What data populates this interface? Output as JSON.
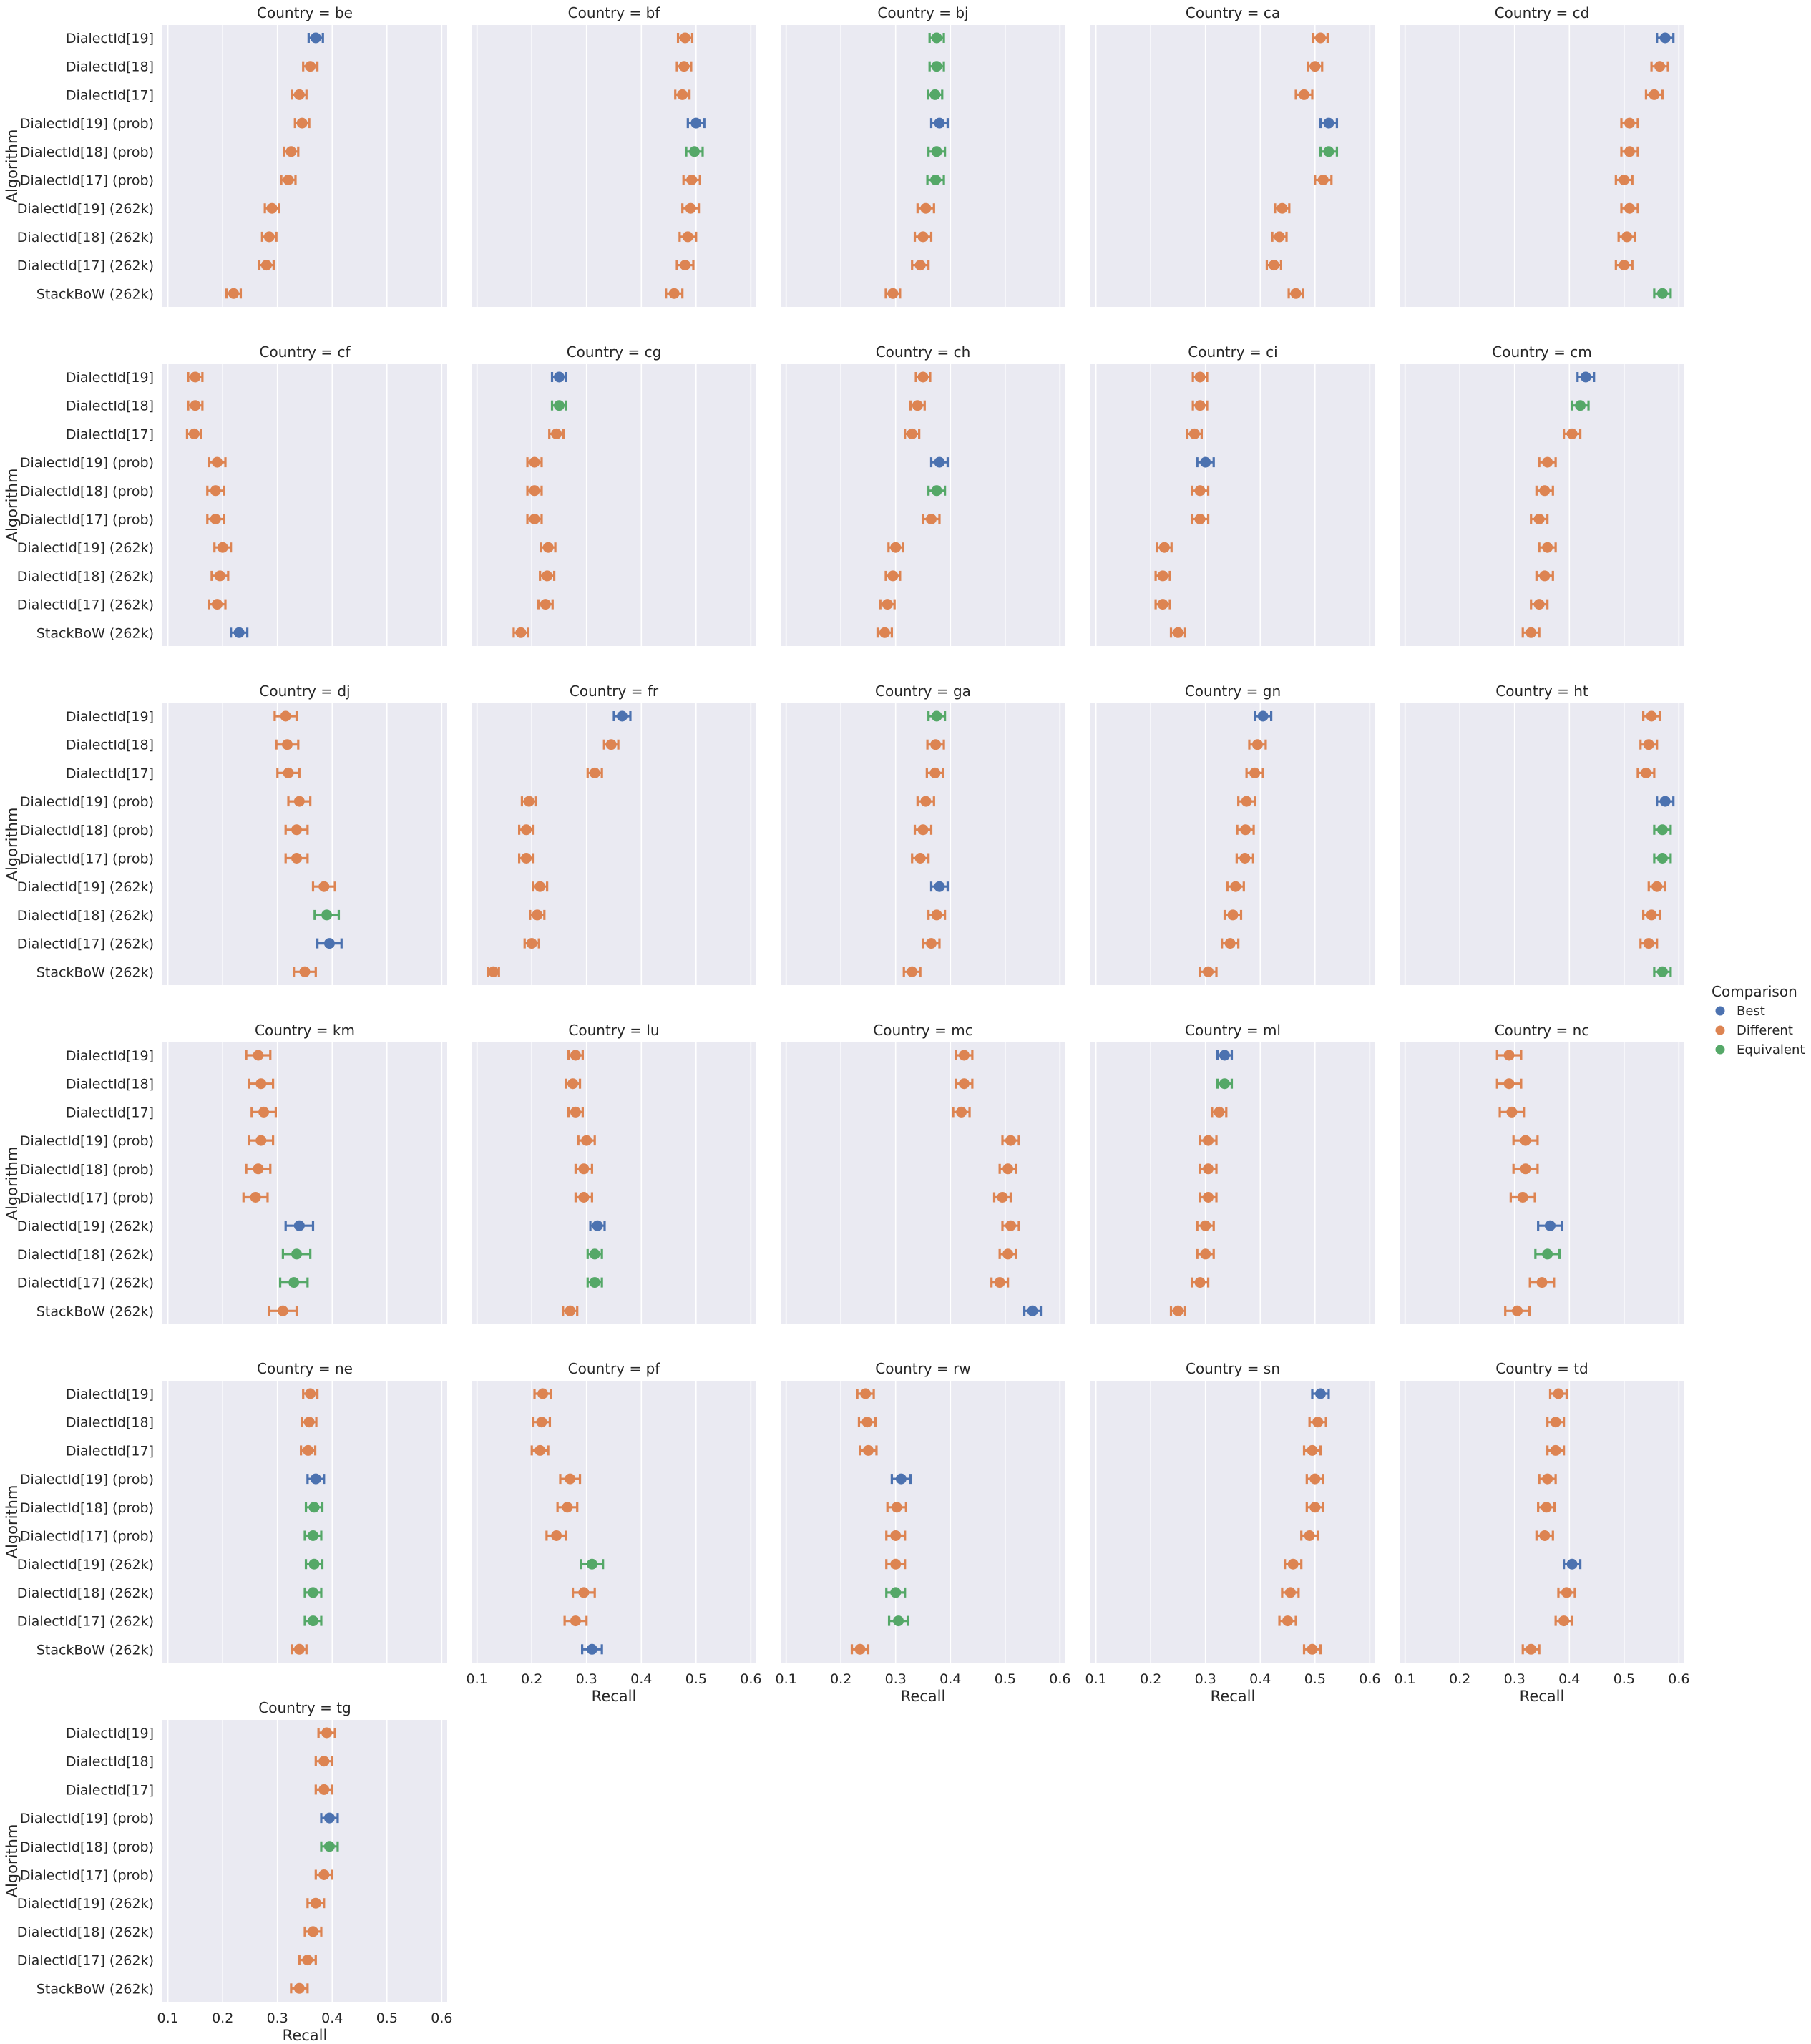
{
  "chart_data": {
    "type": "pointplot",
    "ylabel": "Algorithm",
    "xlabel": "Recall",
    "xlim": [
      0.09,
      0.61
    ],
    "xticks": [
      "0.1",
      "0.2",
      "0.3",
      "0.4",
      "0.5",
      "0.6"
    ],
    "grid": true,
    "legend": {
      "title": "Comparison",
      "placement": "right",
      "entries": [
        {
          "name": "Best",
          "color": "#4c72b0"
        },
        {
          "name": "Different",
          "color": "#dd8452"
        },
        {
          "name": "Equivalent",
          "color": "#55a868"
        }
      ]
    },
    "categories": [
      "DialectId[19]",
      "DialectId[18]",
      "DialectId[17]",
      "DialectId[19] (prob)",
      "DialectId[18] (prob)",
      "DialectId[17] (prob)",
      "DialectId[19] (262k)",
      "DialectId[18] (262k)",
      "DialectId[17] (262k)",
      "StackBoW (262k)"
    ],
    "panels": [
      {
        "title": "Country = be",
        "values": [
          0.37,
          0.36,
          0.34,
          0.345,
          0.325,
          0.32,
          0.29,
          0.285,
          0.28,
          0.22
        ],
        "err": [
          0.013,
          0.013,
          0.013,
          0.013,
          0.013,
          0.013,
          0.013,
          0.013,
          0.013,
          0.013
        ],
        "status": [
          "Best",
          "Different",
          "Different",
          "Different",
          "Different",
          "Different",
          "Different",
          "Different",
          "Different",
          "Different"
        ]
      },
      {
        "title": "Country = bf",
        "values": [
          0.48,
          0.478,
          0.475,
          0.5,
          0.497,
          0.492,
          0.49,
          0.485,
          0.48,
          0.46
        ],
        "err": [
          0.013,
          0.013,
          0.013,
          0.015,
          0.015,
          0.015,
          0.015,
          0.015,
          0.015,
          0.015
        ],
        "status": [
          "Different",
          "Different",
          "Different",
          "Best",
          "Equivalent",
          "Different",
          "Different",
          "Different",
          "Different",
          "Different"
        ]
      },
      {
        "title": "Country = bj",
        "values": [
          0.375,
          0.375,
          0.372,
          0.38,
          0.375,
          0.373,
          0.355,
          0.35,
          0.345,
          0.295
        ],
        "err": [
          0.013,
          0.013,
          0.013,
          0.015,
          0.015,
          0.015,
          0.015,
          0.015,
          0.015,
          0.013
        ],
        "status": [
          "Equivalent",
          "Equivalent",
          "Equivalent",
          "Best",
          "Equivalent",
          "Equivalent",
          "Different",
          "Different",
          "Different",
          "Different"
        ]
      },
      {
        "title": "Country = ca",
        "values": [
          0.51,
          0.5,
          0.48,
          0.525,
          0.525,
          0.515,
          0.44,
          0.435,
          0.425,
          0.465
        ],
        "err": [
          0.013,
          0.013,
          0.015,
          0.015,
          0.015,
          0.015,
          0.013,
          0.013,
          0.013,
          0.013
        ],
        "status": [
          "Different",
          "Different",
          "Different",
          "Best",
          "Equivalent",
          "Different",
          "Different",
          "Different",
          "Different",
          "Different"
        ]
      },
      {
        "title": "Country = cd",
        "values": [
          0.575,
          0.565,
          0.555,
          0.51,
          0.51,
          0.5,
          0.51,
          0.505,
          0.5,
          0.57
        ],
        "err": [
          0.015,
          0.015,
          0.015,
          0.015,
          0.015,
          0.015,
          0.015,
          0.015,
          0.015,
          0.015
        ],
        "status": [
          "Best",
          "Different",
          "Different",
          "Different",
          "Different",
          "Different",
          "Different",
          "Different",
          "Different",
          "Equivalent"
        ]
      },
      {
        "title": "Country = cf",
        "values": [
          0.15,
          0.15,
          0.148,
          0.19,
          0.187,
          0.187,
          0.2,
          0.195,
          0.19,
          0.23
        ],
        "err": [
          0.013,
          0.013,
          0.013,
          0.015,
          0.015,
          0.015,
          0.015,
          0.015,
          0.015,
          0.015
        ],
        "status": [
          "Different",
          "Different",
          "Different",
          "Different",
          "Different",
          "Different",
          "Different",
          "Different",
          "Different",
          "Best"
        ]
      },
      {
        "title": "Country = cg",
        "values": [
          0.25,
          0.25,
          0.245,
          0.205,
          0.205,
          0.205,
          0.23,
          0.228,
          0.225,
          0.18
        ],
        "err": [
          0.013,
          0.013,
          0.013,
          0.013,
          0.013,
          0.013,
          0.013,
          0.013,
          0.013,
          0.013
        ],
        "status": [
          "Best",
          "Equivalent",
          "Different",
          "Different",
          "Different",
          "Different",
          "Different",
          "Different",
          "Different",
          "Different"
        ]
      },
      {
        "title": "Country = ch",
        "values": [
          0.35,
          0.34,
          0.33,
          0.38,
          0.375,
          0.365,
          0.3,
          0.295,
          0.285,
          0.28
        ],
        "err": [
          0.013,
          0.013,
          0.013,
          0.015,
          0.015,
          0.015,
          0.013,
          0.013,
          0.013,
          0.013
        ],
        "status": [
          "Different",
          "Different",
          "Different",
          "Best",
          "Equivalent",
          "Different",
          "Different",
          "Different",
          "Different",
          "Different"
        ]
      },
      {
        "title": "Country = ci",
        "values": [
          0.29,
          0.29,
          0.28,
          0.3,
          0.29,
          0.29,
          0.225,
          0.222,
          0.222,
          0.25
        ],
        "err": [
          0.013,
          0.013,
          0.013,
          0.015,
          0.015,
          0.015,
          0.013,
          0.013,
          0.013,
          0.013
        ],
        "status": [
          "Different",
          "Different",
          "Different",
          "Best",
          "Different",
          "Different",
          "Different",
          "Different",
          "Different",
          "Different"
        ]
      },
      {
        "title": "Country = cm",
        "values": [
          0.43,
          0.42,
          0.405,
          0.36,
          0.355,
          0.345,
          0.36,
          0.355,
          0.345,
          0.33
        ],
        "err": [
          0.015,
          0.015,
          0.015,
          0.015,
          0.015,
          0.015,
          0.015,
          0.015,
          0.015,
          0.015
        ],
        "status": [
          "Best",
          "Equivalent",
          "Different",
          "Different",
          "Different",
          "Different",
          "Different",
          "Different",
          "Different",
          "Different"
        ]
      },
      {
        "title": "Country = dj",
        "values": [
          0.315,
          0.318,
          0.32,
          0.34,
          0.335,
          0.335,
          0.385,
          0.39,
          0.395,
          0.35
        ],
        "err": [
          0.02,
          0.02,
          0.02,
          0.02,
          0.02,
          0.02,
          0.02,
          0.022,
          0.022,
          0.02
        ],
        "status": [
          "Different",
          "Different",
          "Different",
          "Different",
          "Different",
          "Different",
          "Different",
          "Equivalent",
          "Best",
          "Different"
        ]
      },
      {
        "title": "Country = fr",
        "values": [
          0.365,
          0.345,
          0.315,
          0.195,
          0.19,
          0.19,
          0.215,
          0.21,
          0.2,
          0.13
        ],
        "err": [
          0.015,
          0.013,
          0.013,
          0.013,
          0.013,
          0.013,
          0.013,
          0.013,
          0.013,
          0.01
        ],
        "status": [
          "Best",
          "Different",
          "Different",
          "Different",
          "Different",
          "Different",
          "Different",
          "Different",
          "Different",
          "Different"
        ]
      },
      {
        "title": "Country = ga",
        "values": [
          0.375,
          0.373,
          0.372,
          0.355,
          0.35,
          0.345,
          0.38,
          0.375,
          0.365,
          0.33
        ],
        "err": [
          0.015,
          0.015,
          0.015,
          0.015,
          0.015,
          0.015,
          0.015,
          0.015,
          0.015,
          0.015
        ],
        "status": [
          "Equivalent",
          "Different",
          "Different",
          "Different",
          "Different",
          "Different",
          "Best",
          "Different",
          "Different",
          "Different"
        ]
      },
      {
        "title": "Country = gn",
        "values": [
          0.405,
          0.395,
          0.39,
          0.375,
          0.373,
          0.372,
          0.355,
          0.35,
          0.345,
          0.305
        ],
        "err": [
          0.015,
          0.015,
          0.015,
          0.015,
          0.015,
          0.015,
          0.015,
          0.015,
          0.015,
          0.015
        ],
        "status": [
          "Best",
          "Different",
          "Different",
          "Different",
          "Different",
          "Different",
          "Different",
          "Different",
          "Different",
          "Different"
        ]
      },
      {
        "title": "Country = ht",
        "values": [
          0.55,
          0.545,
          0.54,
          0.575,
          0.57,
          0.57,
          0.56,
          0.55,
          0.545,
          0.57
        ],
        "err": [
          0.015,
          0.015,
          0.015,
          0.015,
          0.015,
          0.015,
          0.015,
          0.015,
          0.015,
          0.015
        ],
        "status": [
          "Different",
          "Different",
          "Different",
          "Best",
          "Equivalent",
          "Equivalent",
          "Different",
          "Different",
          "Different",
          "Equivalent"
        ]
      },
      {
        "title": "Country = km",
        "values": [
          0.265,
          0.27,
          0.275,
          0.27,
          0.265,
          0.26,
          0.34,
          0.335,
          0.33,
          0.31
        ],
        "err": [
          0.022,
          0.022,
          0.022,
          0.022,
          0.022,
          0.022,
          0.025,
          0.025,
          0.025,
          0.025
        ],
        "status": [
          "Different",
          "Different",
          "Different",
          "Different",
          "Different",
          "Different",
          "Best",
          "Equivalent",
          "Equivalent",
          "Different"
        ]
      },
      {
        "title": "Country = lu",
        "values": [
          0.28,
          0.275,
          0.28,
          0.3,
          0.295,
          0.295,
          0.32,
          0.315,
          0.315,
          0.27
        ],
        "err": [
          0.013,
          0.013,
          0.013,
          0.015,
          0.015,
          0.015,
          0.013,
          0.013,
          0.013,
          0.013
        ],
        "status": [
          "Different",
          "Different",
          "Different",
          "Different",
          "Different",
          "Different",
          "Best",
          "Equivalent",
          "Equivalent",
          "Different"
        ]
      },
      {
        "title": "Country = mc",
        "values": [
          0.425,
          0.425,
          0.42,
          0.51,
          0.505,
          0.495,
          0.51,
          0.505,
          0.49,
          0.55
        ],
        "err": [
          0.015,
          0.015,
          0.015,
          0.015,
          0.015,
          0.015,
          0.015,
          0.015,
          0.015,
          0.015
        ],
        "status": [
          "Different",
          "Different",
          "Different",
          "Different",
          "Different",
          "Different",
          "Different",
          "Different",
          "Different",
          "Best"
        ]
      },
      {
        "title": "Country = ml",
        "values": [
          0.335,
          0.335,
          0.325,
          0.305,
          0.305,
          0.305,
          0.3,
          0.3,
          0.29,
          0.25
        ],
        "err": [
          0.013,
          0.013,
          0.013,
          0.015,
          0.015,
          0.015,
          0.015,
          0.015,
          0.015,
          0.013
        ],
        "status": [
          "Best",
          "Equivalent",
          "Different",
          "Different",
          "Different",
          "Different",
          "Different",
          "Different",
          "Different",
          "Different"
        ]
      },
      {
        "title": "Country = nc",
        "values": [
          0.29,
          0.29,
          0.295,
          0.32,
          0.32,
          0.315,
          0.365,
          0.36,
          0.35,
          0.305
        ],
        "err": [
          0.022,
          0.022,
          0.022,
          0.022,
          0.022,
          0.022,
          0.022,
          0.022,
          0.022,
          0.022
        ],
        "status": [
          "Different",
          "Different",
          "Different",
          "Different",
          "Different",
          "Different",
          "Best",
          "Equivalent",
          "Different",
          "Different"
        ]
      },
      {
        "title": "Country = ne",
        "values": [
          0.36,
          0.358,
          0.356,
          0.37,
          0.367,
          0.365,
          0.367,
          0.365,
          0.365,
          0.34
        ],
        "err": [
          0.013,
          0.013,
          0.013,
          0.015,
          0.015,
          0.015,
          0.015,
          0.015,
          0.015,
          0.013
        ],
        "status": [
          "Different",
          "Different",
          "Different",
          "Best",
          "Equivalent",
          "Equivalent",
          "Equivalent",
          "Equivalent",
          "Equivalent",
          "Different"
        ]
      },
      {
        "title": "Country = pf",
        "values": [
          0.22,
          0.218,
          0.215,
          0.27,
          0.265,
          0.245,
          0.31,
          0.295,
          0.28,
          0.31
        ],
        "err": [
          0.015,
          0.015,
          0.015,
          0.018,
          0.018,
          0.018,
          0.02,
          0.02,
          0.02,
          0.018
        ],
        "status": [
          "Different",
          "Different",
          "Different",
          "Different",
          "Different",
          "Different",
          "Equivalent",
          "Different",
          "Different",
          "Best"
        ]
      },
      {
        "title": "Country = rw",
        "values": [
          0.245,
          0.248,
          0.25,
          0.31,
          0.302,
          0.3,
          0.3,
          0.3,
          0.305,
          0.235
        ],
        "err": [
          0.015,
          0.015,
          0.015,
          0.017,
          0.017,
          0.017,
          0.017,
          0.017,
          0.017,
          0.015
        ],
        "status": [
          "Different",
          "Different",
          "Different",
          "Best",
          "Different",
          "Different",
          "Different",
          "Equivalent",
          "Equivalent",
          "Different"
        ]
      },
      {
        "title": "Country = sn",
        "values": [
          0.51,
          0.505,
          0.495,
          0.5,
          0.5,
          0.49,
          0.46,
          0.455,
          0.45,
          0.495
        ],
        "err": [
          0.015,
          0.015,
          0.015,
          0.015,
          0.015,
          0.015,
          0.015,
          0.015,
          0.015,
          0.015
        ],
        "status": [
          "Best",
          "Different",
          "Different",
          "Different",
          "Different",
          "Different",
          "Different",
          "Different",
          "Different",
          "Different"
        ]
      },
      {
        "title": "Country = td",
        "values": [
          0.38,
          0.375,
          0.375,
          0.36,
          0.358,
          0.355,
          0.405,
          0.395,
          0.39,
          0.33
        ],
        "err": [
          0.015,
          0.015,
          0.015,
          0.015,
          0.015,
          0.015,
          0.015,
          0.015,
          0.015,
          0.015
        ],
        "status": [
          "Different",
          "Different",
          "Different",
          "Different",
          "Different",
          "Different",
          "Best",
          "Different",
          "Different",
          "Different"
        ]
      },
      {
        "title": "Country = tg",
        "values": [
          0.39,
          0.385,
          0.385,
          0.395,
          0.395,
          0.385,
          0.37,
          0.365,
          0.355,
          0.34
        ],
        "err": [
          0.015,
          0.015,
          0.015,
          0.015,
          0.015,
          0.015,
          0.015,
          0.015,
          0.015,
          0.015
        ],
        "status": [
          "Different",
          "Different",
          "Different",
          "Best",
          "Equivalent",
          "Different",
          "Different",
          "Different",
          "Different",
          "Different"
        ]
      }
    ]
  }
}
